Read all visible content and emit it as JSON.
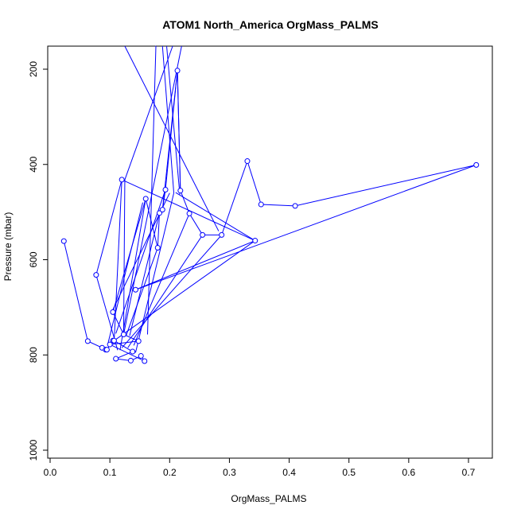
{
  "chart_data": {
    "type": "line",
    "title": "ATOM1 North_America OrgMass_PALMS",
    "xlabel": "OrgMass_PALMS",
    "ylabel": "Pressure (mbar)",
    "xlim": [
      0,
      0.74
    ],
    "ylim": [
      1010,
      160
    ],
    "x_ticks": [
      0.0,
      0.1,
      0.2,
      0.3,
      0.4,
      0.5,
      0.6,
      0.7
    ],
    "x_tick_labels": [
      "0.0",
      "0.1",
      "0.2",
      "0.3",
      "0.4",
      "0.5",
      "0.6",
      "0.7"
    ],
    "y_ticks": [
      200,
      400,
      600,
      800,
      1000
    ],
    "y_tick_labels": [
      "200",
      "400",
      "600",
      "800",
      "1000"
    ],
    "grid": false,
    "series_color": "#0000ff",
    "series": [
      {
        "name": "",
        "points": [
          [
            0.023,
            561
          ],
          [
            0.063,
            771
          ],
          [
            0.087,
            785
          ],
          [
            0.093,
            789
          ],
          [
            0.095,
            789
          ],
          [
            0.105,
            770
          ],
          [
            0.107,
            770
          ],
          [
            0.138,
            793
          ],
          [
            0.11,
            808
          ],
          [
            0.135,
            812
          ],
          [
            0.152,
            802
          ],
          [
            0.158,
            813
          ],
          [
            0.1,
            778
          ],
          [
            0.148,
            771
          ],
          [
            0.123,
            757
          ],
          [
            0.105,
            710
          ],
          [
            0.16,
            472
          ],
          [
            0.18,
            575
          ],
          [
            0.183,
            502
          ],
          [
            0.188,
            495
          ],
          [
            0.193,
            453
          ],
          [
            0.213,
            203
          ],
          [
            0.218,
            455
          ],
          [
            0.233,
            503
          ],
          [
            0.255,
            548
          ],
          [
            0.287,
            548
          ],
          [
            0.33,
            393
          ],
          [
            0.353,
            484
          ],
          [
            0.41,
            487
          ],
          [
            0.713,
            401
          ],
          [
            0.143,
            663
          ],
          [
            0.343,
            560
          ],
          [
            0.12,
            432
          ],
          [
            0.077,
            632
          ]
        ]
      }
    ],
    "connector_segments": [
      [
        [
          0.123,
          757
        ],
        [
          0.22,
          150
        ]
      ],
      [
        [
          0.125,
          432
        ],
        [
          0.205,
          150
        ]
      ],
      [
        [
          0.195,
          150
        ],
        [
          0.217,
          463
        ]
      ],
      [
        [
          0.188,
          150
        ],
        [
          0.207,
          460
        ]
      ],
      [
        [
          0.177,
          150
        ],
        [
          0.163,
          757
        ]
      ],
      [
        [
          0.177,
          150
        ],
        [
          0.176,
          150
        ]
      ],
      [
        [
          0.143,
          795
        ],
        [
          0.207,
          460
        ]
      ],
      [
        [
          0.125,
          150
        ],
        [
          0.282,
          540
        ]
      ],
      [
        [
          0.14,
          780
        ],
        [
          0.233,
          503
        ]
      ],
      [
        [
          0.13,
          785
        ],
        [
          0.255,
          548
        ]
      ],
      [
        [
          0.12,
          785
        ],
        [
          0.287,
          548
        ]
      ],
      [
        [
          0.103,
          710
        ],
        [
          0.2,
          460
        ]
      ],
      [
        [
          0.133,
          760
        ],
        [
          0.183,
          502
        ]
      ],
      [
        [
          0.11,
          755
        ],
        [
          0.193,
          453
        ]
      ],
      [
        [
          0.117,
          790
        ],
        [
          0.16,
          472
        ]
      ],
      [
        [
          0.107,
          770
        ],
        [
          0.343,
          560
        ]
      ],
      [
        [
          0.127,
          760
        ],
        [
          0.18,
          575
        ]
      ],
      [
        [
          0.097,
          775
        ],
        [
          0.155,
          480
        ]
      ],
      [
        [
          0.107,
          775
        ],
        [
          0.12,
          432
        ]
      ],
      [
        [
          0.113,
          790
        ],
        [
          0.077,
          632
        ]
      ],
      [
        [
          0.125,
          432
        ],
        [
          0.123,
          757
        ]
      ],
      [
        [
          0.218,
          455
        ],
        [
          0.213,
          203
        ]
      ],
      [
        [
          0.213,
          203
        ],
        [
          0.188,
          495
        ]
      ],
      [
        [
          0.343,
          560
        ],
        [
          0.21,
          459
        ]
      ]
    ]
  }
}
